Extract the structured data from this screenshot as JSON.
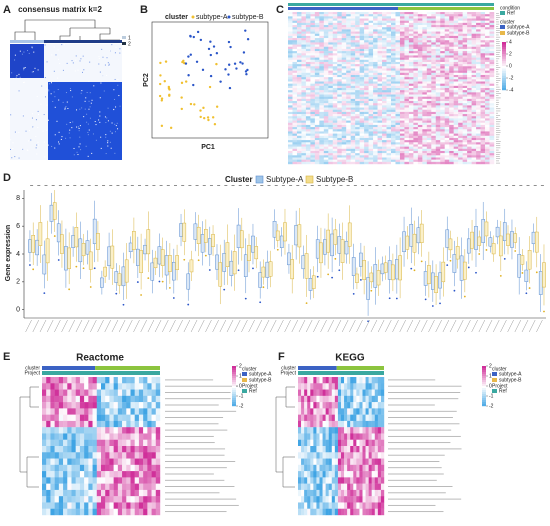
{
  "panels": {
    "A": {
      "label": "A",
      "title": "consensus matrix k=2",
      "legend": [
        "1",
        "2"
      ]
    },
    "B": {
      "label": "B",
      "legend_title": "cluster",
      "legend": [
        "subtype-A",
        "subtype-B"
      ],
      "x_label": "PC1",
      "y_label": "PC2"
    },
    "C": {
      "label": "C",
      "condition_title": "condition",
      "condition": [
        "Ref"
      ],
      "cluster_title": "cluster",
      "cluster": [
        "subtype-A",
        "subtype-B"
      ],
      "colorbar": [
        4,
        2,
        0,
        -2,
        -4
      ]
    },
    "D": {
      "label": "D",
      "legend_title": "Cluster",
      "legend": [
        "Subtype-A",
        "Subtype-B"
      ],
      "y_label": "Gene expression",
      "ylim": [
        -0.6,
        8.6
      ],
      "yticks": [
        0,
        2,
        4,
        6,
        8
      ]
    },
    "E": {
      "label": "E",
      "title": "Reactome",
      "annotation": [
        "cluster",
        "Project"
      ],
      "cluster_title": "cluster",
      "cluster": [
        "subtype-A",
        "subtype-B"
      ],
      "project_title": "Project",
      "project": [
        "Ref"
      ],
      "colorbar": [
        2,
        1,
        0,
        -1,
        -2
      ]
    },
    "F": {
      "label": "F",
      "title": "KEGG",
      "annotation": [
        "cluster",
        "Project"
      ],
      "cluster_title": "cluster",
      "cluster": [
        "subtype-A",
        "subtype-B"
      ],
      "project_title": "Project",
      "project": [
        "Ref"
      ],
      "colorbar": [
        2,
        1,
        0,
        -1,
        -2
      ]
    }
  }
}
